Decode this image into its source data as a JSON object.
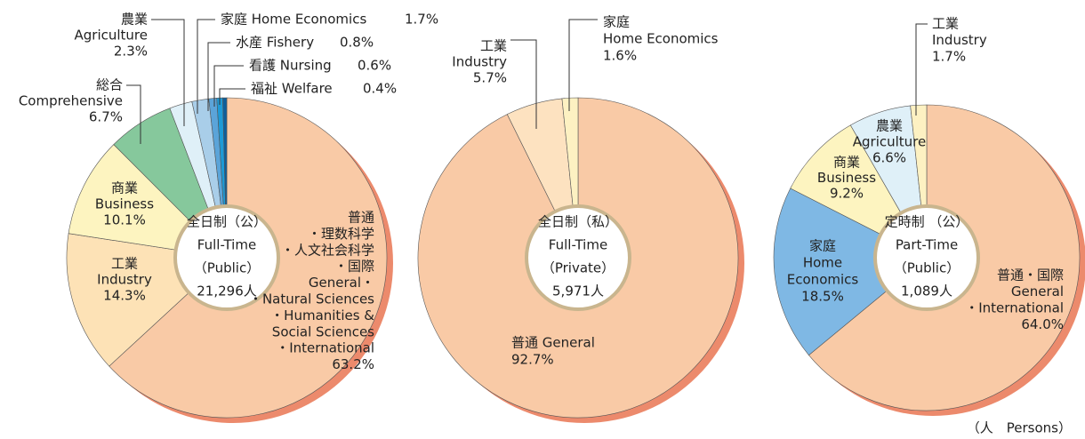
{
  "chart_data": [
    {
      "type": "pie",
      "center": [
        "全日制（公）",
        "Full-Time",
        "（Public）",
        "21,296人"
      ],
      "segments": [
        {
          "label": [
            "普通",
            "・理数科学",
            "・人文社会科学",
            "・国際",
            "General・",
            "・Natural Sciences",
            "・Humanities &",
            "Social Sciences",
            "・International"
          ],
          "value": 63.2,
          "value_label": "63.2%",
          "color": "#f9caa6"
        },
        {
          "label": [
            "工業",
            "Industry"
          ],
          "value": 14.3,
          "value_label": "14.3%",
          "color": "#fde2b6"
        },
        {
          "label": [
            "商業",
            "Business"
          ],
          "value": 10.1,
          "value_label": "10.1%",
          "color": "#fdf4c0"
        },
        {
          "label": [
            "総合",
            "Comprehensive"
          ],
          "value": 6.7,
          "value_label": "6.7%",
          "color": "#86c89c"
        },
        {
          "label": [
            "農業",
            "Agriculture"
          ],
          "value": 2.3,
          "value_label": "2.3%",
          "color": "#dff0f8"
        },
        {
          "label": [
            "家庭 Home Economics"
          ],
          "value": 1.7,
          "value_label": "1.7%",
          "color": "#a9cee9"
        },
        {
          "label": [
            "水産 Fishery"
          ],
          "value": 0.8,
          "value_label": "0.8%",
          "color": "#5ba4d9"
        },
        {
          "label": [
            "看護 Nursing"
          ],
          "value": 0.6,
          "value_label": "0.6%",
          "color": "#1d9ad6"
        },
        {
          "label": [
            "福祉 Welfare"
          ],
          "value": 0.4,
          "value_label": "0.4%",
          "color": "#0d5f9c"
        }
      ]
    },
    {
      "type": "pie",
      "center": [
        "全日制（私）",
        "Full-Time",
        "（Private）",
        "5,971人"
      ],
      "segments": [
        {
          "label": [
            "普通 General"
          ],
          "value": 92.7,
          "value_label": "92.7%",
          "color": "#f9caa6"
        },
        {
          "label": [
            "工業",
            "Industry"
          ],
          "value": 5.7,
          "value_label": "5.7%",
          "color": "#fde2c0"
        },
        {
          "label": [
            "家庭",
            "Home Economics"
          ],
          "value": 1.6,
          "value_label": "1.6%",
          "color": "#fdf1c2"
        }
      ]
    },
    {
      "type": "pie",
      "center": [
        "定時制 （公）",
        "Part-Time",
        "（Public）",
        "1,089人"
      ],
      "segments": [
        {
          "label": [
            "普通・国際",
            "General",
            "・International"
          ],
          "value": 64.0,
          "value_label": "64.0%",
          "color": "#f9caa6"
        },
        {
          "label": [
            "家庭",
            "Home",
            "Economics"
          ],
          "value": 18.5,
          "value_label": "18.5%",
          "color": "#7fb8e4"
        },
        {
          "label": [
            "商業",
            "Business"
          ],
          "value": 9.2,
          "value_label": "9.2%",
          "color": "#fdf4c0"
        },
        {
          "label": [
            "農業",
            "Agriculture"
          ],
          "value": 6.6,
          "value_label": "6.6%",
          "color": "#dff0f8"
        },
        {
          "label": [
            "工業",
            "Industry"
          ],
          "value": 1.7,
          "value_label": "1.7%",
          "color": "#fdf1c2"
        }
      ]
    }
  ],
  "note": "（人　Persons）"
}
